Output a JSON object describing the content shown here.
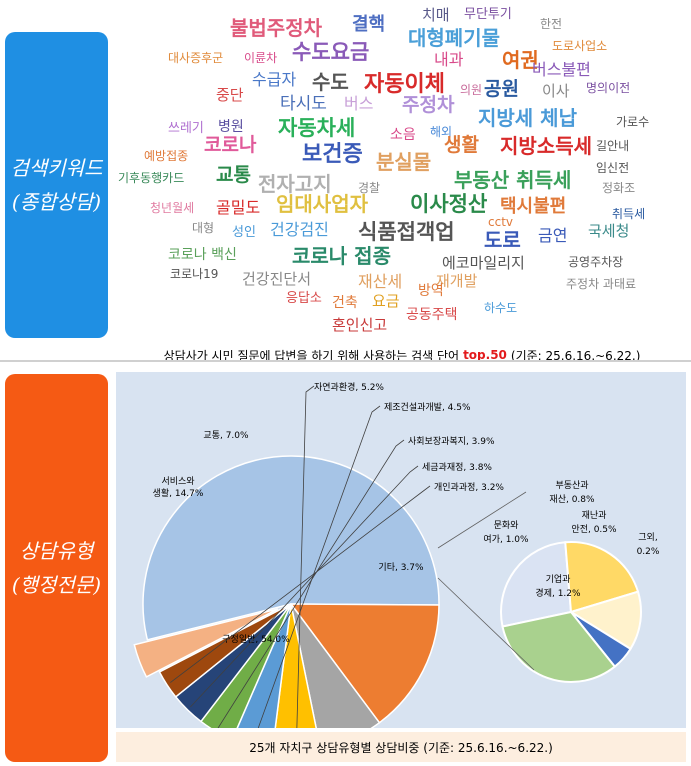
{
  "sections": {
    "keywords_label": "검색키워드\n(종합상담)",
    "types_label": "상담유형\n(행정전문)"
  },
  "wordcloud": {
    "words": [
      {
        "text": "불법주정차",
        "color": "#e05a7a",
        "size": 20
      },
      {
        "text": "결핵",
        "color": "#4f6fc2",
        "size": 18
      },
      {
        "text": "치매",
        "color": "#5a5a8a",
        "size": 15
      },
      {
        "text": "무단투기",
        "color": "#7a4fa0",
        "size": 13
      },
      {
        "text": "한전",
        "color": "#888888",
        "size": 12
      },
      {
        "text": "수도요금",
        "color": "#8a5ab8",
        "size": 21
      },
      {
        "text": "대형폐기물",
        "color": "#4a9fd8",
        "size": 20
      },
      {
        "text": "도로사업소",
        "color": "#e08a3a",
        "size": 12
      },
      {
        "text": "대사증후군",
        "color": "#e08a3a",
        "size": 12
      },
      {
        "text": "이륜차",
        "color": "#d84a8a",
        "size": 12
      },
      {
        "text": "내과",
        "color": "#d84a8a",
        "size": 16
      },
      {
        "text": "여권",
        "color": "#e06a20",
        "size": 20
      },
      {
        "text": "버스불편",
        "color": "#8a5ab8",
        "size": 16
      },
      {
        "text": "수급자",
        "color": "#4a78c8",
        "size": 16
      },
      {
        "text": "수도",
        "color": "#555555",
        "size": 20
      },
      {
        "text": "자동이체",
        "color": "#d82a2a",
        "size": 22
      },
      {
        "text": "공원",
        "color": "#2a5aa0",
        "size": 19
      },
      {
        "text": "이사",
        "color": "#888888",
        "size": 15
      },
      {
        "text": "명의이전",
        "color": "#7a4fa0",
        "size": 12
      },
      {
        "text": "중단",
        "color": "#d84a4a",
        "size": 15
      },
      {
        "text": "타시도",
        "color": "#4a6fb8",
        "size": 17
      },
      {
        "text": "버스",
        "color": "#c8a0d8",
        "size": 16
      },
      {
        "text": "주정차",
        "color": "#b090d8",
        "size": 19
      },
      {
        "text": "의원",
        "color": "#c86a9a",
        "size": 12
      },
      {
        "text": "쓰레기",
        "color": "#b070d0",
        "size": 13
      },
      {
        "text": "병원",
        "color": "#5a4fa0",
        "size": 14
      },
      {
        "text": "자동차세",
        "color": "#2ab05a",
        "size": 21
      },
      {
        "text": "소음",
        "color": "#d84a8a",
        "size": 14
      },
      {
        "text": "해외",
        "color": "#4a8ad8",
        "size": 12
      },
      {
        "text": "지방세 체납",
        "color": "#4a9ad8",
        "size": 20
      },
      {
        "text": "가로수",
        "color": "#555555",
        "size": 12
      },
      {
        "text": "예방접종",
        "color": "#e07a3a",
        "size": 12
      },
      {
        "text": "코로나",
        "color": "#e05a9a",
        "size": 19
      },
      {
        "text": "보건증",
        "color": "#3a5ab8",
        "size": 22
      },
      {
        "text": "생활",
        "color": "#e07a3a",
        "size": 19
      },
      {
        "text": "지방소득세",
        "color": "#d82a2a",
        "size": 20
      },
      {
        "text": "길안내",
        "color": "#555555",
        "size": 12
      },
      {
        "text": "기후동행카드",
        "color": "#3a8a5a",
        "size": 12
      },
      {
        "text": "분실물",
        "color": "#e0a060",
        "size": 20
      },
      {
        "text": "임신전",
        "color": "#555555",
        "size": 12
      },
      {
        "text": "교통",
        "color": "#2a8a4a",
        "size": 19
      },
      {
        "text": "전자고지",
        "color": "#b0b0b0",
        "size": 20
      },
      {
        "text": "경찰",
        "color": "#888888",
        "size": 12
      },
      {
        "text": "부동산 취득세",
        "color": "#3aa05a",
        "size": 20
      },
      {
        "text": "정화조",
        "color": "#888888",
        "size": 12
      },
      {
        "text": "청년월세",
        "color": "#e07aa0",
        "size": 12
      },
      {
        "text": "골밀도",
        "color": "#d82a2a",
        "size": 16
      },
      {
        "text": "임대사업자",
        "color": "#e0c040",
        "size": 20
      },
      {
        "text": "이사정산",
        "color": "#2a8a4a",
        "size": 21
      },
      {
        "text": "택시불편",
        "color": "#e07a3a",
        "size": 18
      },
      {
        "text": "취득세",
        "color": "#2a5aa0",
        "size": 12
      },
      {
        "text": "대형",
        "color": "#888888",
        "size": 12
      },
      {
        "text": "성인",
        "color": "#4a9ad8",
        "size": 13
      },
      {
        "text": "건강검진",
        "color": "#4a9ad8",
        "size": 16
      },
      {
        "text": "식품접객업",
        "color": "#555555",
        "size": 21
      },
      {
        "text": "cctv",
        "color": "#e07a3a",
        "size": 12
      },
      {
        "text": "도로",
        "color": "#3a5ab8",
        "size": 20
      },
      {
        "text": "금연",
        "color": "#3a5ab8",
        "size": 16
      },
      {
        "text": "국세청",
        "color": "#3a8a8a",
        "size": 15
      },
      {
        "text": "코로나 백신",
        "color": "#5aa05a",
        "size": 14
      },
      {
        "text": "코로나 접종",
        "color": "#2a8a6a",
        "size": 20
      },
      {
        "text": "에코마일리지",
        "color": "#555555",
        "size": 15
      },
      {
        "text": "공영주차장",
        "color": "#555555",
        "size": 12
      },
      {
        "text": "코로나19",
        "color": "#555555",
        "size": 12
      },
      {
        "text": "건강진단서",
        "color": "#888888",
        "size": 15
      },
      {
        "text": "재산세",
        "color": "#e0a060",
        "size": 16
      },
      {
        "text": "재개발",
        "color": "#e0a060",
        "size": 15
      },
      {
        "text": "주정차 과태료",
        "color": "#888888",
        "size": 12
      },
      {
        "text": "응답소",
        "color": "#d84a4a",
        "size": 13
      },
      {
        "text": "건축",
        "color": "#e07a3a",
        "size": 14
      },
      {
        "text": "요금",
        "color": "#e0a020",
        "size": 15
      },
      {
        "text": "방역",
        "color": "#e07a3a",
        "size": 14
      },
      {
        "text": "하수도",
        "color": "#4a9ad8",
        "size": 12
      },
      {
        "text": "혼인신고",
        "color": "#c83a3a",
        "size": 15
      },
      {
        "text": "공동주택",
        "color": "#d84a4a",
        "size": 14
      }
    ]
  },
  "caption_top": {
    "prefix": "상담사가 시민 질문에 답변을 하기 위해 사용하는 검색 단어",
    "highlight": "top.50",
    "suffix": "(기준: 25.6.16.~6.22.)"
  },
  "chart_data": {
    "type": "pie",
    "title": "",
    "slices": [
      {
        "label": "구정일반, 54.0%",
        "value": 54.0,
        "color": "#a6c4e6"
      },
      {
        "label": "서비스와 생활, 14.7%",
        "value": 14.7,
        "color": "#ed7d31"
      },
      {
        "label": "교통, 7.0%",
        "value": 7.0,
        "color": "#a5a5a5"
      },
      {
        "label": "자연과환경, 5.2%",
        "value": 5.2,
        "color": "#ffc000"
      },
      {
        "label": "제조건설과개발, 4.5%",
        "value": 4.5,
        "color": "#5b9bd5"
      },
      {
        "label": "사회보장과복지, 3.9%",
        "value": 3.9,
        "color": "#70ad47"
      },
      {
        "label": "세금과재정, 3.8%",
        "value": 3.8,
        "color": "#264478"
      },
      {
        "label": "개인과과정, 3.2%",
        "value": 3.2,
        "color": "#9e480e"
      },
      {
        "label": "기타, 3.7%",
        "value": 3.7,
        "color": "#f4b183"
      }
    ],
    "sub_pie": {
      "label": "기타, 3.7%",
      "slices": [
        {
          "label": "문화와 여가, 1.0%",
          "value": 1.0,
          "color": "#dae3f3"
        },
        {
          "label": "부동산과 재산, 0.8%",
          "value": 0.8,
          "color": "#ffd966"
        },
        {
          "label": "재난과 안전, 0.5%",
          "value": 0.5,
          "color": "#fff2cc"
        },
        {
          "label": "그외, 0.2%",
          "value": 0.2,
          "color": "#4472c4"
        },
        {
          "label": "기업과 경제, 1.2%",
          "value": 1.2,
          "color": "#a9d18e"
        }
      ]
    }
  },
  "caption_bottom": "25개 자치구 상담유형별 상담비중 (기준: 25.6.16.~6.22.)"
}
